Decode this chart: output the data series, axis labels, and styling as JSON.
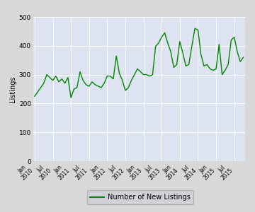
{
  "values": [
    225,
    240,
    255,
    270,
    300,
    290,
    280,
    295,
    275,
    285,
    270,
    290,
    220,
    250,
    255,
    310,
    280,
    265,
    260,
    275,
    265,
    260,
    255,
    270,
    295,
    295,
    285,
    365,
    305,
    280,
    245,
    255,
    280,
    300,
    320,
    310,
    300,
    300,
    295,
    300,
    398,
    410,
    430,
    445,
    410,
    380,
    325,
    335,
    415,
    375,
    330,
    335,
    400,
    460,
    455,
    370,
    330,
    335,
    320,
    315,
    320,
    405,
    300,
    315,
    335,
    420,
    430,
    380,
    345,
    360
  ],
  "x_tick_labels": [
    "Jan\n2010",
    "Jul\n2010",
    "Jan\n2011",
    "Jul\n2011",
    "Jan\n2012",
    "Jul\n2012",
    "Jan\n2013",
    "Jul\n2013",
    "Jan\n2014",
    "Jul\n2014",
    "Jan\n2015",
    "Jul\n2015"
  ],
  "x_tick_positions": [
    0,
    6,
    12,
    18,
    24,
    30,
    36,
    42,
    48,
    54,
    60,
    66
  ],
  "y_ticks": [
    0,
    100,
    200,
    300,
    400,
    500
  ],
  "ylim": [
    0,
    500
  ],
  "ylabel": "Listings",
  "line_color": "#008800",
  "bg_color": "#dde3f0",
  "outer_bg": "#d8d8d8",
  "legend_label": "Number of New Listings",
  "legend_bg": "#d0d0d8",
  "legend_border": "#aaaaaa",
  "n_points": 70
}
